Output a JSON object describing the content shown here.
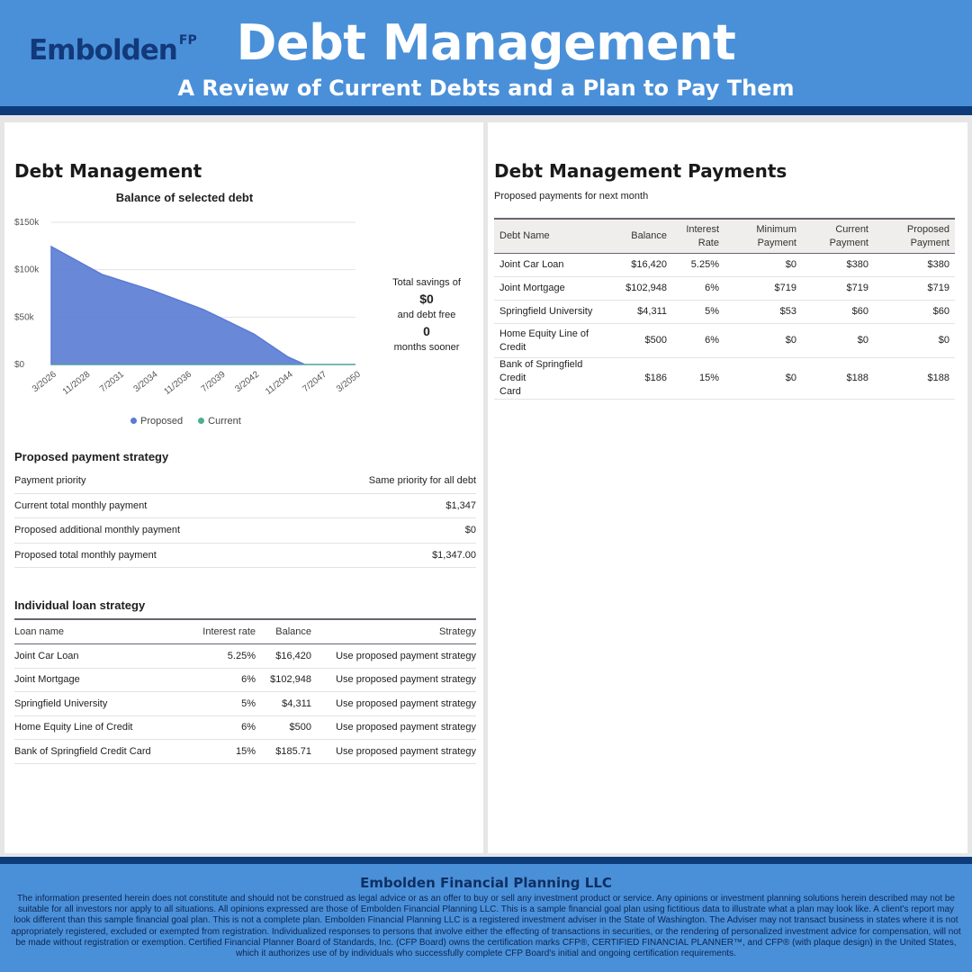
{
  "header": {
    "logo_text": "Embolden",
    "logo_sup": "FP",
    "title": "Debt Management",
    "subtitle": "A Review of Current Debts and a Plan to Pay Them"
  },
  "colors": {
    "header_bg": "#4a90d9",
    "dark_rule": "#0e3c7a",
    "proposed": "#5a7bd4",
    "current": "#4caf8e"
  },
  "left_panel": {
    "title": "Debt Management",
    "chart_data": {
      "type": "area",
      "title": "Balance of selected debt",
      "y_ticks": [
        "$150k",
        "$100k",
        "$50k",
        "$0"
      ],
      "ylim": [
        0,
        150000
      ],
      "x_ticks": [
        "3/2026",
        "11/2028",
        "7/2031",
        "3/2034",
        "11/2036",
        "7/2039",
        "3/2042",
        "11/2044",
        "7/2047",
        "3/2050"
      ],
      "grid": true,
      "legend_position": "bottom",
      "series": [
        {
          "name": "Proposed",
          "x_index": [
            0,
            1.5,
            3,
            4.5,
            6,
            7,
            7.5,
            9
          ],
          "values": [
            124367,
            95000,
            78000,
            58000,
            32000,
            8000,
            0,
            0
          ]
        },
        {
          "name": "Current",
          "x_index": [
            0,
            9
          ],
          "values": [
            0,
            0
          ]
        }
      ]
    },
    "savings": {
      "line1": "Total savings of",
      "amount": "$0",
      "line2": "and debt free",
      "months": "0",
      "line3": "months sooner"
    },
    "legend": {
      "proposed": "Proposed",
      "current": "Current"
    },
    "strategy": {
      "title": "Proposed payment strategy",
      "rows": [
        {
          "label": "Payment priority",
          "value": "Same priority for all debt"
        },
        {
          "label": "Current total monthly payment",
          "value": "$1,347"
        },
        {
          "label": "Proposed additional monthly payment",
          "value": "$0"
        },
        {
          "label": "Proposed total monthly payment",
          "value": "$1,347.00"
        }
      ]
    },
    "loans": {
      "title": "Individual loan strategy",
      "headers": {
        "name": "Loan name",
        "rate": "Interest rate",
        "balance": "Balance",
        "strategy": "Strategy"
      },
      "rows": [
        {
          "name": "Joint Car Loan",
          "rate": "5.25%",
          "balance": "$16,420",
          "strategy": "Use proposed payment strategy"
        },
        {
          "name": "Joint Mortgage",
          "rate": "6%",
          "balance": "$102,948",
          "strategy": "Use proposed payment strategy"
        },
        {
          "name": "Springfield University",
          "rate": "5%",
          "balance": "$4,311",
          "strategy": "Use proposed payment strategy"
        },
        {
          "name": "Home Equity Line of Credit",
          "rate": "6%",
          "balance": "$500",
          "strategy": "Use proposed payment strategy"
        },
        {
          "name": "Bank of Springfield Credit Card",
          "rate": "15%",
          "balance": "$185.71",
          "strategy": "Use proposed payment strategy"
        }
      ]
    }
  },
  "right_panel": {
    "title": "Debt Management Payments",
    "subtitle": "Proposed payments for next month",
    "headers": {
      "name": "Debt Name",
      "balance": "Balance",
      "rate_1": "Interest",
      "rate_2": "Rate",
      "min_1": "Minimum",
      "min_2": "Payment",
      "cur_1": "Current",
      "cur_2": "Payment",
      "prop_1": "Proposed",
      "prop_2": "Payment"
    },
    "rows": [
      {
        "name_1": "Joint Car Loan",
        "name_2": "",
        "balance": "$16,420",
        "rate": "5.25%",
        "minimum": "$0",
        "current": "$380",
        "proposed": "$380"
      },
      {
        "name_1": "Joint Mortgage",
        "name_2": "",
        "balance": "$102,948",
        "rate": "6%",
        "minimum": "$719",
        "current": "$719",
        "proposed": "$719"
      },
      {
        "name_1": "Springfield University",
        "name_2": "",
        "balance": "$4,311",
        "rate": "5%",
        "minimum": "$53",
        "current": "$60",
        "proposed": "$60"
      },
      {
        "name_1": "Home Equity Line of",
        "name_2": "Credit",
        "balance": "$500",
        "rate": "6%",
        "minimum": "$0",
        "current": "$0",
        "proposed": "$0"
      },
      {
        "name_1": "Bank of Springfield Credit",
        "name_2": "Card",
        "balance": "$186",
        "rate": "15%",
        "minimum": "$0",
        "current": "$188",
        "proposed": "$188"
      }
    ]
  },
  "footer": {
    "title": "Embolden Financial Planning LLC",
    "disclaimer": "The information presented herein does not constitute and should not be construed as legal advice or as an offer to buy or sell any investment product or service. Any opinions or investment planning solutions herein described may not be suitable for all investors nor apply to all situations. All opinions expressed are those of Embolden Financial Planning LLC. This is a sample financial goal plan using fictitious data to illustrate what a plan may look like. A client's report may look different than this sample financial goal plan. This is not a complete plan. Embolden Financial Planning LLC is a registered investment adviser in the State of Washington. The Adviser may not transact business in states where it is not appropriately registered, excluded or exempted from registration. Individualized responses to persons that involve either the effecting of transactions in securities, or the rendering of personalized investment advice for compensation, will not be made without registration or exemption. Certified Financial Planner Board of Standards, Inc. (CFP Board) owns the certification marks CFP®, CERTIFIED FINANCIAL PLANNER™, and CFP® (with plaque design) in the United States, which it authorizes use of by individuals who successfully complete CFP Board's initial and ongoing certification requirements."
  }
}
